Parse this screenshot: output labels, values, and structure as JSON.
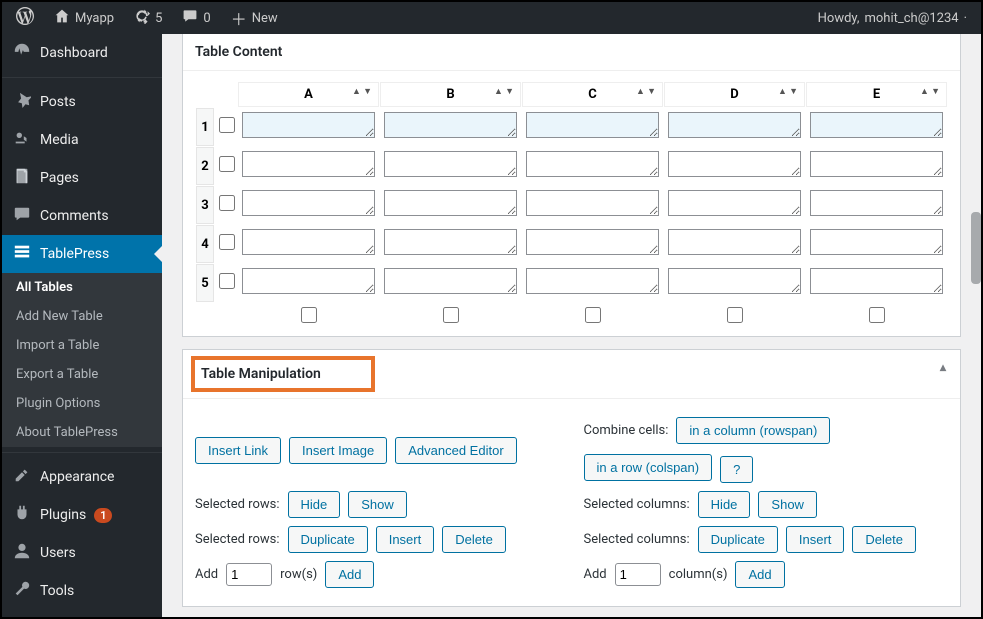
{
  "adminbar": {
    "site_name": "Myapp",
    "updates_count": "5",
    "comments_count": "0",
    "new_label": "New",
    "howdy_prefix": "Howdy,",
    "user_name": "mohit_ch@1234"
  },
  "sidebar": {
    "items": [
      {
        "icon": "dashboard",
        "label": "Dashboard"
      },
      {
        "sep": true
      },
      {
        "icon": "pin",
        "label": "Posts"
      },
      {
        "icon": "media",
        "label": "Media"
      },
      {
        "icon": "page",
        "label": "Pages"
      },
      {
        "icon": "comment",
        "label": "Comments"
      },
      {
        "icon": "table",
        "label": "TablePress",
        "active": true
      },
      {
        "sep": true
      },
      {
        "icon": "appearance",
        "label": "Appearance"
      },
      {
        "icon": "plugin",
        "label": "Plugins",
        "badge": "1"
      },
      {
        "icon": "user",
        "label": "Users"
      },
      {
        "icon": "tool",
        "label": "Tools"
      }
    ],
    "submenu": [
      {
        "label": "All Tables",
        "active": true
      },
      {
        "label": "Add New Table"
      },
      {
        "label": "Import a Table"
      },
      {
        "label": "Export a Table"
      },
      {
        "label": "Plugin Options"
      },
      {
        "label": "About TablePress"
      }
    ]
  },
  "table_content": {
    "title": "Table Content",
    "columns": [
      "A",
      "B",
      "C",
      "D",
      "E"
    ],
    "rows": [
      "1",
      "2",
      "3",
      "4",
      "5"
    ],
    "cells": [
      [
        "",
        "",
        "",
        "",
        ""
      ],
      [
        "",
        "",
        "",
        "",
        ""
      ],
      [
        "",
        "",
        "",
        "",
        ""
      ],
      [
        "",
        "",
        "",
        "",
        ""
      ],
      [
        "",
        "",
        "",
        "",
        ""
      ]
    ]
  },
  "manipulation": {
    "title": "Table Manipulation",
    "insert_link": "Insert Link",
    "insert_image": "Insert Image",
    "advanced_editor": "Advanced Editor",
    "combine_cells_label": "Combine cells:",
    "rowspan_btn": "in a column (rowspan)",
    "colspan_btn": "in a row (colspan)",
    "help_btn": "?",
    "selected_rows_label": "Selected rows:",
    "selected_columns_label": "Selected columns:",
    "hide_btn": "Hide",
    "show_btn": "Show",
    "duplicate_btn": "Duplicate",
    "insert_btn": "Insert",
    "delete_btn": "Delete",
    "add_label": "Add",
    "rows_value": "1",
    "rows_suffix": "row(s)",
    "cols_value": "1",
    "cols_suffix": "column(s)",
    "add_btn": "Add"
  },
  "colors": {
    "accent": "#0073aa",
    "highlight": "#e8742c"
  }
}
